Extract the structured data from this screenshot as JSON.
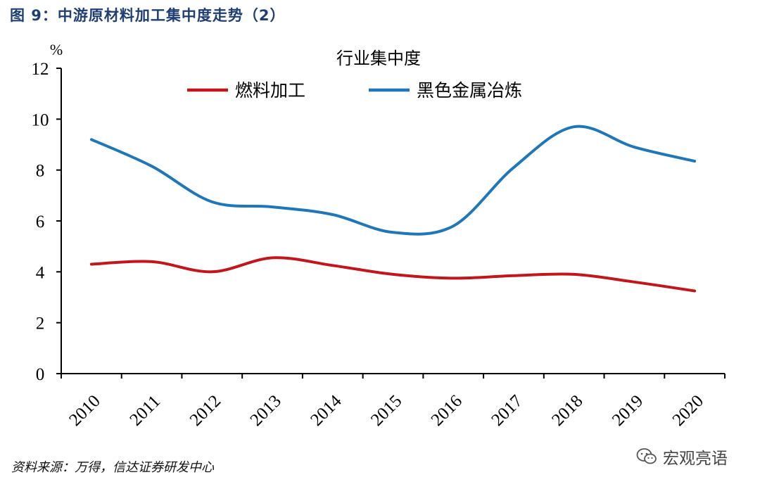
{
  "figure": {
    "title": "图 9：中游原材料加工集中度走势（2）",
    "source": "资料来源：万得，信达证券研发中心",
    "watermark": "宏观亮语",
    "watermark_icon": "wechat-icon"
  },
  "chart_data": {
    "type": "line",
    "title": "行业集中度",
    "y_unit": "%",
    "xlabel": "",
    "ylabel": "",
    "ylim": [
      0,
      12
    ],
    "yticks": [
      0,
      2,
      4,
      6,
      8,
      10,
      12
    ],
    "categories": [
      "2010",
      "2011",
      "2012",
      "2013",
      "2014",
      "2015",
      "2016",
      "2017",
      "2018",
      "2019",
      "2020"
    ],
    "grid": false,
    "legend_position": "top-center",
    "series": [
      {
        "name": "燃料加工",
        "color": "#c0161c",
        "values": [
          4.3,
          4.4,
          4.0,
          4.55,
          4.25,
          3.9,
          3.75,
          3.85,
          3.9,
          3.6,
          3.25
        ]
      },
      {
        "name": "黑色金属冶炼",
        "color": "#1f77b8",
        "values": [
          9.2,
          8.15,
          6.75,
          6.55,
          6.25,
          5.55,
          5.8,
          8.1,
          9.7,
          8.9,
          8.35
        ]
      }
    ]
  }
}
